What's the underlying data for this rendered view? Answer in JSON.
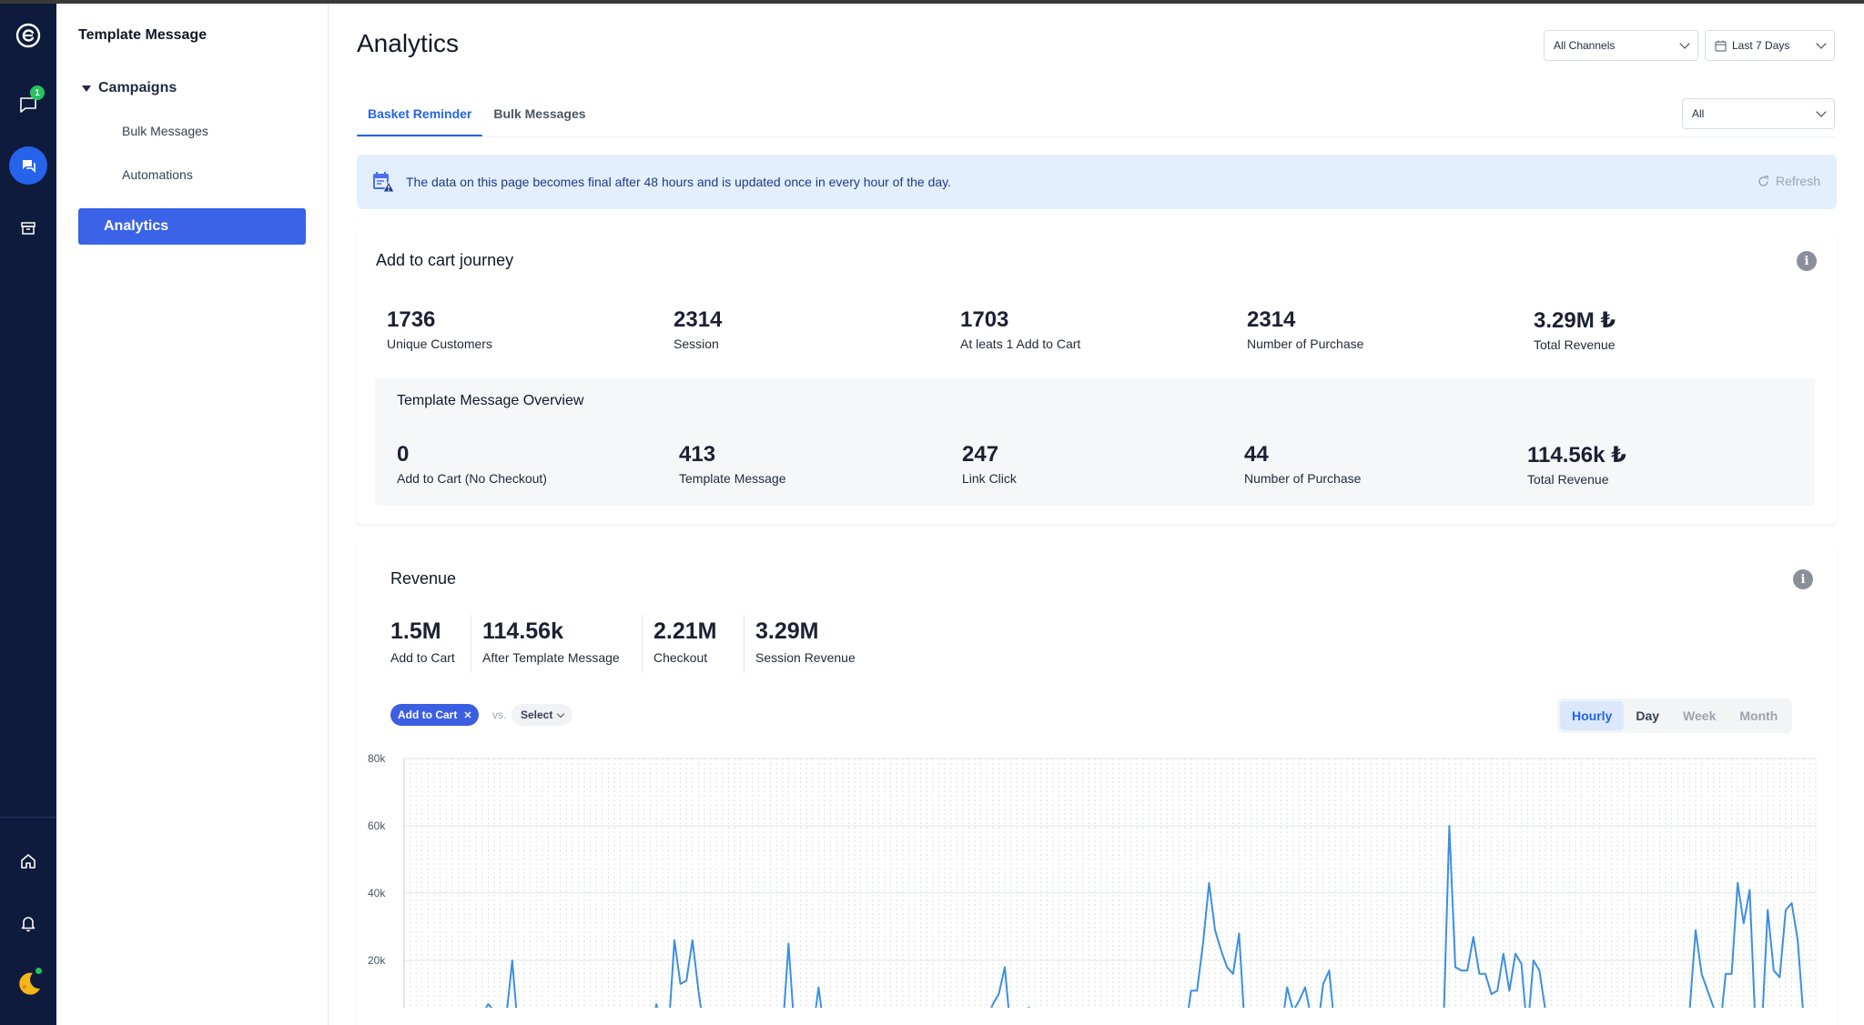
{
  "rail": {
    "chat_badge": "1"
  },
  "sidebar": {
    "title": "Template Message",
    "group_label": "Campaigns",
    "items": [
      {
        "label": "Bulk Messages"
      },
      {
        "label": "Automations"
      }
    ],
    "active_label": "Analytics"
  },
  "header": {
    "title": "Analytics",
    "channels_select": "All Channels",
    "range_select": "Last 7 Days",
    "filter_select": "All"
  },
  "tabs": [
    {
      "label": "Basket Reminder",
      "active": true
    },
    {
      "label": "Bulk Messages",
      "active": false
    }
  ],
  "banner": {
    "message": "The data on this page becomes final after 48 hours and is updated once in every hour of the day.",
    "refresh_label": "Refresh"
  },
  "journey": {
    "title": "Add to cart journey",
    "stats": [
      {
        "value": "1736",
        "label": "Unique Customers"
      },
      {
        "value": "2314",
        "label": "Session"
      },
      {
        "value": "1703",
        "label": "At leats 1 Add to Cart"
      },
      {
        "value": "2314",
        "label": "Number of Purchase"
      },
      {
        "value": "3.29M ₺",
        "label": "Total Revenue"
      }
    ],
    "overview": {
      "title": "Template Message Overview",
      "stats": [
        {
          "value": "0",
          "label": "Add to Cart (No Checkout)"
        },
        {
          "value": "413",
          "label": "Template Message"
        },
        {
          "value": "247",
          "label": "Link Click"
        },
        {
          "value": "44",
          "label": "Number of Purchase"
        },
        {
          "value": "114.56k ₺",
          "label": "Total Revenue"
        }
      ]
    }
  },
  "revenue": {
    "title": "Revenue",
    "stats": [
      {
        "value": "1.5M",
        "label": "Add to Cart"
      },
      {
        "value": "114.56k",
        "label": "After Template Message"
      },
      {
        "value": "2.21M",
        "label": "Checkout"
      },
      {
        "value": "3.29M",
        "label": "Session Revenue"
      }
    ],
    "compare": {
      "chip": "Add to Cart",
      "vs": "vs.",
      "select": "Select"
    },
    "granularity": [
      {
        "label": "Hourly",
        "active": true
      },
      {
        "label": "Day",
        "active": false
      },
      {
        "label": "Week",
        "active": false
      },
      {
        "label": "Month",
        "active": false
      }
    ]
  },
  "chart_data": {
    "type": "line",
    "series": [
      {
        "color": "#3b8fe0",
        "values": [
          0,
          0,
          0,
          0,
          0,
          0,
          0,
          0,
          0,
          3000,
          0,
          0,
          3000,
          4000,
          7000,
          5000,
          0,
          3000,
          20000,
          0,
          0,
          0,
          0,
          0,
          2000,
          0,
          0,
          0,
          0,
          0,
          0,
          0,
          0,
          0,
          0,
          0,
          0,
          0,
          0,
          0,
          0,
          0,
          7000,
          0,
          0,
          26000,
          13000,
          14000,
          26000,
          11000,
          0,
          0,
          0,
          0,
          5000,
          0,
          0,
          0,
          0,
          0,
          0,
          0,
          0,
          0,
          25000,
          0,
          0,
          0,
          0,
          12000,
          0,
          0,
          0,
          0,
          0,
          0,
          0,
          0,
          0,
          0,
          0,
          0,
          0,
          0,
          0,
          0,
          0,
          0,
          0,
          0,
          5000,
          0,
          0,
          5000,
          0,
          0,
          0,
          2000,
          7000,
          10000,
          18000,
          0,
          0,
          2000,
          6000,
          0,
          0,
          0,
          0,
          0,
          0,
          2000,
          0,
          0,
          0,
          0,
          0,
          0,
          0,
          0,
          0,
          0,
          0,
          0,
          0,
          0,
          0,
          0,
          0,
          0,
          0,
          11000,
          11000,
          25000,
          43000,
          29000,
          23000,
          18000,
          16000,
          28000,
          0,
          0,
          0,
          0,
          0,
          0,
          0,
          12000,
          5000,
          8000,
          12000,
          3000,
          0,
          13000,
          17000,
          0,
          0,
          0,
          0,
          0,
          0,
          0,
          0,
          0,
          0,
          0,
          0,
          0,
          0,
          0,
          0,
          0,
          0,
          0,
          60000,
          18000,
          17000,
          17000,
          27000,
          16000,
          16000,
          10000,
          11000,
          22000,
          11000,
          22000,
          19000,
          0,
          20000,
          17000,
          5000,
          0,
          0,
          0,
          0,
          0,
          0,
          0,
          0,
          0,
          0,
          0,
          0,
          0,
          0,
          0,
          0,
          0,
          0,
          0,
          0,
          0,
          0,
          0,
          5000,
          29000,
          16000,
          11000,
          6000,
          0,
          16000,
          16000,
          43000,
          31000,
          41000,
          0,
          0,
          35000,
          17000,
          15000,
          35000,
          37000,
          26000,
          2000,
          0,
          0
        ]
      }
    ],
    "ylim": [
      0,
      80000
    ],
    "yticks": [
      "80k",
      "60k",
      "40k",
      "20k"
    ],
    "grid": true
  }
}
